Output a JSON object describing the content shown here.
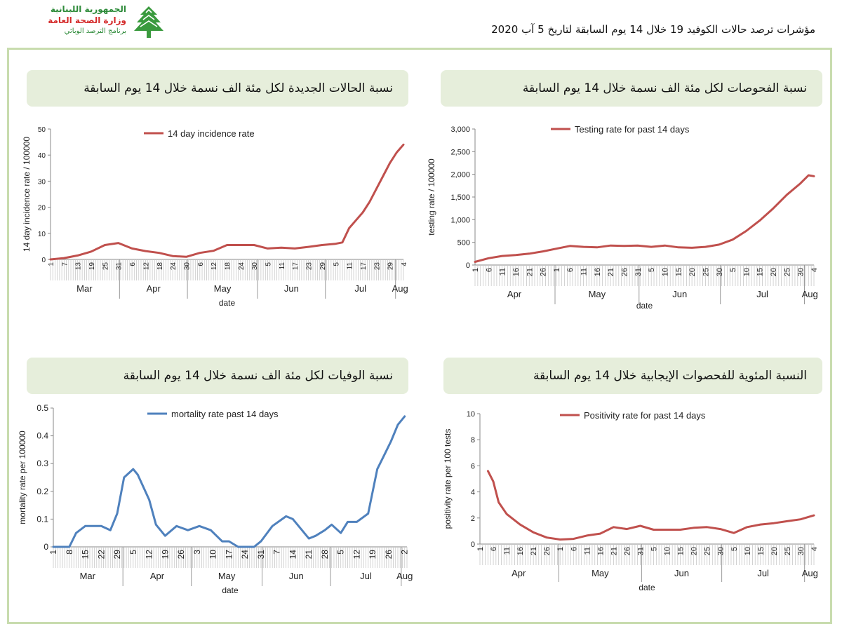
{
  "logo": {
    "line1": "الجمهورية اللبنانية",
    "line2": "وزارة الصحة العامة",
    "line3": "برنامج الترصد الوبائي"
  },
  "header": {
    "text": "مؤشرات ترصد حالات الكوفيد 19 خلال  14 يوم السابقة لتاريخ 5 آب 2020"
  },
  "panels": {
    "incidence": {
      "title": "نسبة الحالات الجديدة لكل مئة الف نسمة خلال 14 يوم السابقة"
    },
    "testing": {
      "title": "نسبة الفحوصات لكل مئة الف نسمة خلال 14 يوم السابقة"
    },
    "mortality": {
      "title": "نسبة الوفيات لكل مئة الف نسمة خلال 14 يوم السابقة"
    },
    "positivity": {
      "title": "النسبة المئوية للفحصوات الإيجابية خلال 14 يوم السابقة"
    }
  },
  "chart_data": [
    {
      "id": "incidence",
      "type": "line",
      "color": "#c0504d",
      "ylabel": "14 day incidence rate / 100000",
      "xlabel": "date",
      "ylim": [
        0,
        50
      ],
      "yticks": [
        "0",
        "10",
        "20",
        "30",
        "40",
        "50"
      ],
      "ytick_values": [
        0,
        10,
        20,
        30,
        40,
        50
      ],
      "series": [
        {
          "name": "14 day incidence rate",
          "x": [
            "Mar 1",
            "Mar 7",
            "Mar 13",
            "Mar 19",
            "Mar 25",
            "Mar 31",
            "Apr 6",
            "Apr 12",
            "Apr 18",
            "Apr 24",
            "Apr 30",
            "May 6",
            "May 12",
            "May 18",
            "May 24",
            "May 30",
            "Jun 5",
            "Jun 11",
            "Jun 17",
            "Jun 23",
            "Jun 29",
            "Jul 5",
            "Jul 8",
            "Jul 11",
            "Jul 14",
            "Jul 17",
            "Jul 20",
            "Jul 23",
            "Jul 26",
            "Jul 29",
            "Aug 1",
            "Aug 4"
          ],
          "values": [
            0,
            0.5,
            1.5,
            3,
            5.5,
            6.3,
            4.2,
            3.2,
            2.5,
            1.3,
            1,
            2.5,
            3.3,
            5.5,
            5.5,
            5.5,
            4.2,
            4.5,
            4.2,
            4.8,
            5.5,
            6,
            6.5,
            12,
            15,
            18,
            22,
            27,
            32,
            37,
            41,
            44
          ]
        }
      ],
      "x_ticks": [
        "1",
        "7",
        "13",
        "19",
        "25",
        "31",
        "6",
        "12",
        "18",
        "24",
        "30",
        "6",
        "12",
        "18",
        "24",
        "30",
        "5",
        "11",
        "17",
        "23",
        "29",
        "5",
        "11",
        "17",
        "23",
        "29",
        "4"
      ],
      "months": [
        "Mar",
        "Apr",
        "May",
        "Jun",
        "Jul",
        "Aug"
      ]
    },
    {
      "id": "testing",
      "type": "line",
      "color": "#c0504d",
      "ylabel": "testing rate / 100000",
      "xlabel": "date",
      "ylim": [
        0,
        3000
      ],
      "yticks": [
        "0",
        "500",
        "1,000",
        "1,500",
        "2,000",
        "2,500",
        "3,000"
      ],
      "ytick_values": [
        0,
        500,
        1000,
        1500,
        2000,
        2500,
        3000
      ],
      "series": [
        {
          "name": "Testing rate for past 14 days",
          "x": [
            "Apr 1",
            "Apr 6",
            "Apr 11",
            "Apr 16",
            "Apr 21",
            "Apr 26",
            "May 1",
            "May 6",
            "May 11",
            "May 16",
            "May 21",
            "May 26",
            "May 31",
            "Jun 5",
            "Jun 10",
            "Jun 15",
            "Jun 20",
            "Jun 25",
            "Jun 30",
            "Jul 5",
            "Jul 10",
            "Jul 15",
            "Jul 20",
            "Jul 25",
            "Jul 30",
            "Aug 2",
            "Aug 4"
          ],
          "values": [
            70,
            150,
            200,
            220,
            250,
            300,
            360,
            420,
            400,
            390,
            430,
            420,
            430,
            400,
            430,
            390,
            380,
            400,
            450,
            560,
            750,
            980,
            1250,
            1550,
            1800,
            1980,
            1960
          ]
        }
      ],
      "x_ticks": [
        "1",
        "6",
        "11",
        "16",
        "21",
        "26",
        "1",
        "6",
        "11",
        "16",
        "21",
        "26",
        "31",
        "5",
        "10",
        "15",
        "20",
        "25",
        "30",
        "5",
        "10",
        "15",
        "20",
        "25",
        "30",
        "4"
      ],
      "months": [
        "Apr",
        "May",
        "Jun",
        "Jul",
        "Aug"
      ]
    },
    {
      "id": "mortality",
      "type": "line",
      "color": "#4f81bd",
      "ylabel": "mortality rate per 100000",
      "xlabel": "date",
      "ylim": [
        0,
        0.5
      ],
      "yticks": [
        "0",
        "0.1",
        "0.2",
        "0.3",
        "0.4",
        "0.5"
      ],
      "ytick_values": [
        0,
        0.1,
        0.2,
        0.3,
        0.4,
        0.5
      ],
      "series": [
        {
          "name": "mortality rate past 14 days",
          "x": [
            "Mar 1",
            "Mar 8",
            "Mar 11",
            "Mar 15",
            "Mar 22",
            "Mar 26",
            "Mar 29",
            "Apr 1",
            "Apr 5",
            "Apr 7",
            "Apr 12",
            "Apr 15",
            "Apr 19",
            "Apr 24",
            "Apr 29",
            "May 4",
            "May 9",
            "May 14",
            "May 17",
            "May 21",
            "May 24",
            "May 28",
            "May 31",
            "Jun 5",
            "Jun 11",
            "Jun 14",
            "Jun 18",
            "Jun 21",
            "Jun 24",
            "Jun 28",
            "Jul 1",
            "Jul 5",
            "Jul 8",
            "Jul 12",
            "Jul 17",
            "Jul 21",
            "Jul 24",
            "Jul 27",
            "Jul 30",
            "Aug 2"
          ],
          "values": [
            0,
            0,
            0.05,
            0.075,
            0.075,
            0.06,
            0.12,
            0.25,
            0.28,
            0.26,
            0.17,
            0.08,
            0.04,
            0.075,
            0.06,
            0.075,
            0.06,
            0.02,
            0.02,
            0,
            0,
            0,
            0.02,
            0.075,
            0.11,
            0.1,
            0.06,
            0.03,
            0.04,
            0.06,
            0.08,
            0.05,
            0.09,
            0.09,
            0.12,
            0.28,
            0.33,
            0.38,
            0.44,
            0.47
          ]
        }
      ],
      "x_ticks": [
        "1",
        "8",
        "15",
        "22",
        "29",
        "5",
        "12",
        "19",
        "26",
        "3",
        "10",
        "17",
        "24",
        "31",
        "7",
        "14",
        "21",
        "28",
        "5",
        "12",
        "19",
        "26",
        "2"
      ],
      "months": [
        "Mar",
        "Apr",
        "May",
        "Jun",
        "Jul",
        "Aug"
      ]
    },
    {
      "id": "positivity",
      "type": "line",
      "color": "#c0504d",
      "ylabel": "positivity rate per 100 tests",
      "xlabel": "date",
      "ylim": [
        0,
        10
      ],
      "yticks": [
        "0",
        "2",
        "4",
        "6",
        "8",
        "10"
      ],
      "ytick_values": [
        0,
        2,
        4,
        6,
        8,
        10
      ],
      "series": [
        {
          "name": "Positivity rate for past 14 days",
          "x": [
            "Apr 4",
            "Apr 6",
            "Apr 8",
            "Apr 11",
            "Apr 16",
            "Apr 21",
            "Apr 26",
            "May 1",
            "May 6",
            "May 11",
            "May 16",
            "May 21",
            "May 26",
            "May 31",
            "Jun 5",
            "Jun 10",
            "Jun 15",
            "Jun 20",
            "Jun 25",
            "Jun 30",
            "Jul 5",
            "Jul 10",
            "Jul 15",
            "Jul 20",
            "Jul 25",
            "Jul 30",
            "Aug 4"
          ],
          "values": [
            5.6,
            4.8,
            3.2,
            2.3,
            1.5,
            0.9,
            0.5,
            0.35,
            0.4,
            0.65,
            0.8,
            1.3,
            1.15,
            1.4,
            1.1,
            1.1,
            1.1,
            1.25,
            1.3,
            1.15,
            0.85,
            1.3,
            1.5,
            1.6,
            1.75,
            1.9,
            2.2
          ]
        }
      ],
      "x_ticks": [
        "1",
        "6",
        "11",
        "16",
        "21",
        "26",
        "1",
        "6",
        "11",
        "16",
        "21",
        "26",
        "31",
        "5",
        "10",
        "15",
        "20",
        "25",
        "30",
        "5",
        "10",
        "15",
        "20",
        "25",
        "30",
        "4"
      ],
      "months": [
        "Apr",
        "May",
        "Jun",
        "Jul",
        "Aug"
      ]
    }
  ]
}
